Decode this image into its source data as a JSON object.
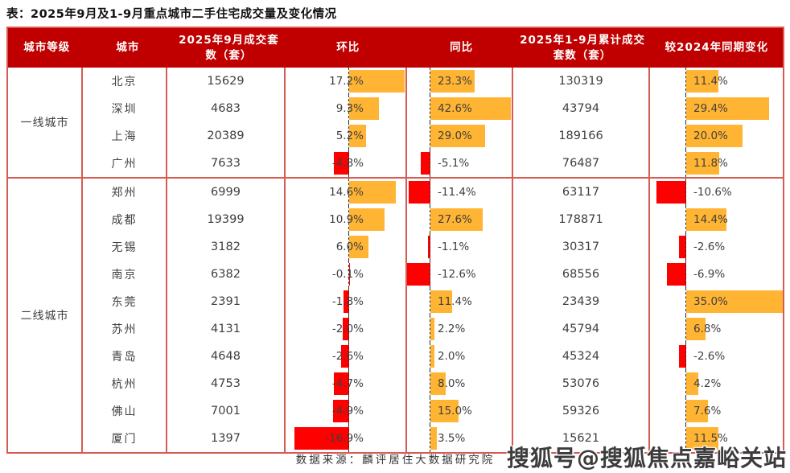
{
  "title": "表：2025年9月及1-9月重点城市二手住宅成交量及变化情况",
  "chart_data": {
    "type": "table",
    "title": "表：2025年9月及1-9月重点城市二手住宅成交量及变化情况",
    "columns": [
      "城市等级",
      "城市",
      "2025年9月成交套数（套）",
      "环比",
      "同比",
      "2025年1-9月累计成交套数（套）",
      "较2024年同期变化"
    ],
    "bar_columns_note": "环比/同比/较2024年同期变化 rendered as Excel-style data bars: positive orange right of dashed zero line, negative red left of it",
    "groups": [
      {
        "tier": "一线城市",
        "rows": [
          {
            "city": "北京",
            "sep_count": "15629",
            "mom": "17.2%",
            "yoy": "23.3%",
            "cum_count": "130319",
            "vs2024": "11.4%"
          },
          {
            "city": "深圳",
            "sep_count": "4683",
            "mom": "9.3%",
            "yoy": "42.6%",
            "cum_count": "43794",
            "vs2024": "29.4%"
          },
          {
            "city": "上海",
            "sep_count": "20389",
            "mom": "5.2%",
            "yoy": "29.0%",
            "cum_count": "189166",
            "vs2024": "20.0%"
          },
          {
            "city": "广州",
            "sep_count": "7633",
            "mom": "-4.8%",
            "yoy": "-5.1%",
            "cum_count": "76487",
            "vs2024": "11.8%"
          }
        ]
      },
      {
        "tier": "二线城市",
        "rows": [
          {
            "city": "郑州",
            "sep_count": "6999",
            "mom": "14.6%",
            "yoy": "-11.4%",
            "cum_count": "63117",
            "vs2024": "-10.6%"
          },
          {
            "city": "成都",
            "sep_count": "19399",
            "mom": "10.9%",
            "yoy": "27.6%",
            "cum_count": "178871",
            "vs2024": "14.4%"
          },
          {
            "city": "无锡",
            "sep_count": "3182",
            "mom": "6.0%",
            "yoy": "-1.1%",
            "cum_count": "30317",
            "vs2024": "-2.6%"
          },
          {
            "city": "南京",
            "sep_count": "6382",
            "mom": "-0.1%",
            "yoy": "-12.6%",
            "cum_count": "68556",
            "vs2024": "-6.9%"
          },
          {
            "city": "东莞",
            "sep_count": "2391",
            "mom": "-1.8%",
            "yoy": "11.4%",
            "cum_count": "23439",
            "vs2024": "35.0%"
          },
          {
            "city": "苏州",
            "sep_count": "4131",
            "mom": "-2.0%",
            "yoy": "2.2%",
            "cum_count": "45794",
            "vs2024": "6.8%"
          },
          {
            "city": "青岛",
            "sep_count": "4648",
            "mom": "-2.6%",
            "yoy": "2.0%",
            "cum_count": "45324",
            "vs2024": "-2.6%"
          },
          {
            "city": "杭州",
            "sep_count": "4753",
            "mom": "-4.7%",
            "yoy": "8.0%",
            "cum_count": "53076",
            "vs2024": "4.2%"
          },
          {
            "city": "佛山",
            "sep_count": "7001",
            "mom": "-4.9%",
            "yoy": "15.0%",
            "cum_count": "59326",
            "vs2024": "7.6%"
          },
          {
            "city": "厦门",
            "sep_count": "1397",
            "mom": "-16.9%",
            "yoy": "3.5%",
            "cum_count": "15621",
            "vs2024": "11.5%"
          }
        ]
      }
    ]
  },
  "footer": {
    "source": "数据来源：麟评居住大数据研究院"
  },
  "watermark": "搜狐号@搜狐焦点嘉峪关站",
  "colors": {
    "header_bg": "#C00000",
    "border": "#D85B53",
    "bar_positive": "#FFB433",
    "bar_negative": "#FF0000",
    "header_text": "#FFFFFF",
    "body_text": "#3F3F3F"
  }
}
